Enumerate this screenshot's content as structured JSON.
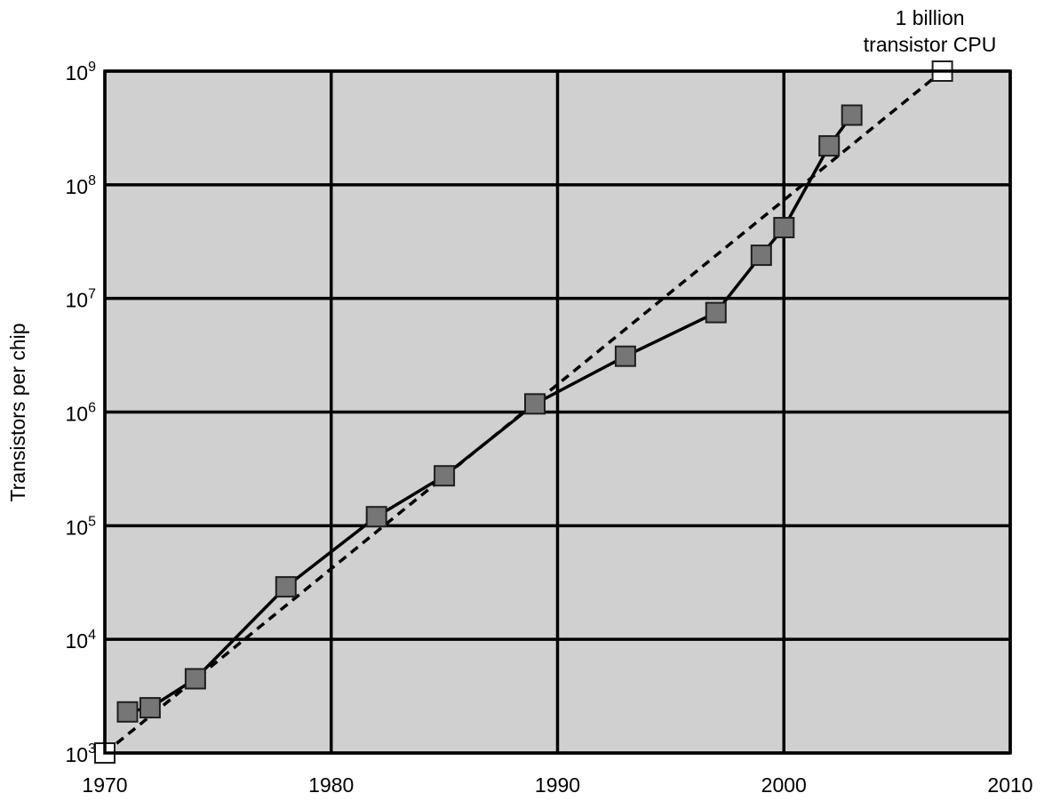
{
  "chart_data": {
    "type": "line",
    "ylabel": "Transistors per chip",
    "xlabel": "",
    "title": "",
    "xlim": [
      1970,
      2010
    ],
    "ylim": [
      1000,
      1000000000
    ],
    "y_scale": "log",
    "grid": true,
    "colors": {
      "plot_background": "#d0d0d0",
      "grid": "#000000",
      "marker_fill": "#767676",
      "marker_stroke": "#1e1e1e",
      "projection_marker_fill": "#ffffff",
      "line": "#000000"
    },
    "x_ticks": [
      {
        "value": 1970,
        "label": "1970"
      },
      {
        "value": 1980,
        "label": "1980"
      },
      {
        "value": 1990,
        "label": "1990"
      },
      {
        "value": 2000,
        "label": "2000"
      },
      {
        "value": 2010,
        "label": "2010"
      }
    ],
    "y_ticks": [
      {
        "value": 1000,
        "base": "10",
        "exp": "3"
      },
      {
        "value": 10000,
        "base": "10",
        "exp": "4"
      },
      {
        "value": 100000,
        "base": "10",
        "exp": "5"
      },
      {
        "value": 1000000,
        "base": "10",
        "exp": "6"
      },
      {
        "value": 10000000,
        "base": "10",
        "exp": "7"
      },
      {
        "value": 100000000,
        "base": "10",
        "exp": "8"
      },
      {
        "value": 1000000000,
        "base": "10",
        "exp": "9"
      }
    ],
    "series": [
      {
        "style": "solid",
        "marker": "square-filled",
        "points": [
          {
            "x": 1971,
            "y": 2300
          },
          {
            "x": 1972,
            "y": 2500
          },
          {
            "x": 1974,
            "y": 4500
          },
          {
            "x": 1978,
            "y": 29000
          },
          {
            "x": 1982,
            "y": 120000
          },
          {
            "x": 1985,
            "y": 275000
          },
          {
            "x": 1989,
            "y": 1180000
          },
          {
            "x": 1993,
            "y": 3100000
          },
          {
            "x": 1997,
            "y": 7500000
          },
          {
            "x": 1999,
            "y": 24000000
          },
          {
            "x": 2000,
            "y": 42000000
          },
          {
            "x": 2002,
            "y": 220000000
          },
          {
            "x": 2003,
            "y": 410000000
          }
        ]
      },
      {
        "style": "dashed",
        "marker": "square-open",
        "points": [
          {
            "x": 1970,
            "y": 1000
          },
          {
            "x": 2007,
            "y": 1000000000
          }
        ]
      }
    ],
    "annotations": [
      {
        "text_lines": [
          "1 billion",
          "transistor CPU"
        ],
        "x": 2007,
        "y": 1000000000
      }
    ]
  }
}
